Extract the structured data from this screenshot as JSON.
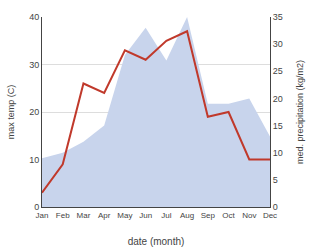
{
  "chart_data": {
    "type": "line",
    "xlabel": "date (month)",
    "ylabel": "max temp (C)",
    "y2label": "med. precipitation (kg/m2)",
    "categories": [
      "Jan",
      "Feb",
      "Mar",
      "Apr",
      "May",
      "Jun",
      "Jul",
      "Aug",
      "Sep",
      "Oct",
      "Nov",
      "Dec"
    ],
    "series": [
      {
        "type": "area",
        "color": "#c8d4ec",
        "axis": "y2",
        "values": [
          9,
          10,
          12,
          15,
          28,
          33,
          27,
          35,
          19,
          19,
          20,
          13
        ]
      },
      {
        "type": "line",
        "color": "#c0392b",
        "values": [
          3,
          9,
          26,
          24,
          33,
          31,
          35,
          37,
          19,
          20,
          10,
          10
        ]
      }
    ],
    "ylim": [
      0,
      40
    ],
    "yticks": [
      0,
      10,
      20,
      30,
      40
    ],
    "y2lim": [
      0,
      35
    ],
    "y2ticks": [
      0,
      5,
      10,
      15,
      20,
      25,
      30,
      35
    ],
    "grid": true
  }
}
